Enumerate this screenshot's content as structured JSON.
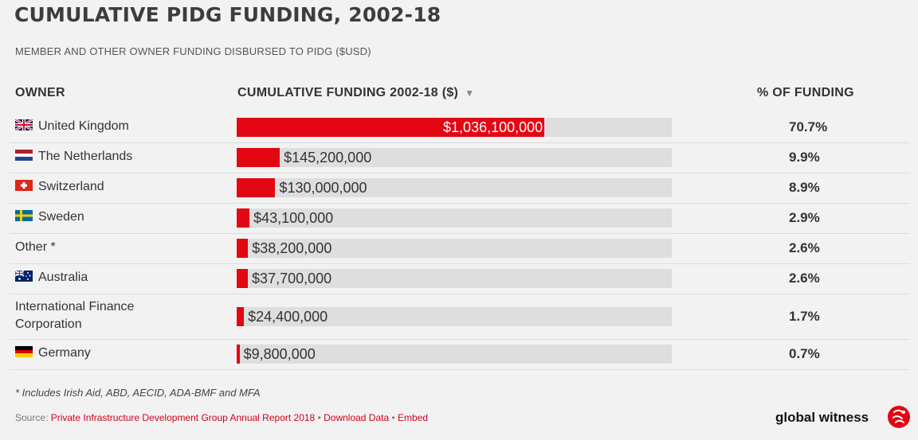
{
  "title": "CUMULATIVE PIDG FUNDING, 2002-18",
  "subtitle": "MEMBER AND OTHER OWNER FUNDING DISBURSED TO PIDG ($USD)",
  "columns": {
    "owner": "OWNER",
    "funding": "CUMULATIVE FUNDING 2002-18 ($)",
    "sort_icon": "▼",
    "percent": "% OF FUNDING"
  },
  "chart_data": {
    "type": "bar",
    "orientation": "horizontal",
    "title": "CUMULATIVE PIDG FUNDING, 2002-18",
    "subtitle": "MEMBER AND OTHER OWNER FUNDING DISBURSED TO PIDG ($USD)",
    "categories": [
      "United Kingdom",
      "The Netherlands",
      "Switzerland",
      "Sweden",
      "Other *",
      "Australia",
      "International Finance Corporation",
      "Germany"
    ],
    "values": [
      1036100000,
      145200000,
      130000000,
      43100000,
      38200000,
      37700000,
      24400000,
      9800000
    ],
    "value_labels": [
      "$1,036,100,000",
      "$145,200,000",
      "$130,000,000",
      "$43,100,000",
      "$38,200,000",
      "$37,700,000",
      "$24,400,000",
      "$9,800,000"
    ],
    "percent_labels": [
      "70.7%",
      "9.9%",
      "8.9%",
      "2.9%",
      "2.6%",
      "2.6%",
      "1.7%",
      "0.7%"
    ],
    "flag_icons": [
      "uk-flag-icon",
      "netherlands-flag-icon",
      "switzerland-flag-icon",
      "sweden-flag-icon",
      "",
      "australia-flag-icon",
      "",
      "germany-flag-icon"
    ],
    "xlim": [
      0,
      1465000000
    ],
    "bar_color": "#e30613",
    "track_color": "#dedede"
  },
  "footnote": "* Includes Irish Aid, ABD, AECID, ADA-BMF and MFA",
  "source": {
    "prefix": "Source: ",
    "link": "Private Infrastructure Development Group Annual Report 2018",
    "sep1": " • ",
    "download": "Download Data",
    "sep2": " • ",
    "embed": "Embed"
  },
  "brand": "global witness",
  "brand_icon": "global-witness-logo-icon"
}
